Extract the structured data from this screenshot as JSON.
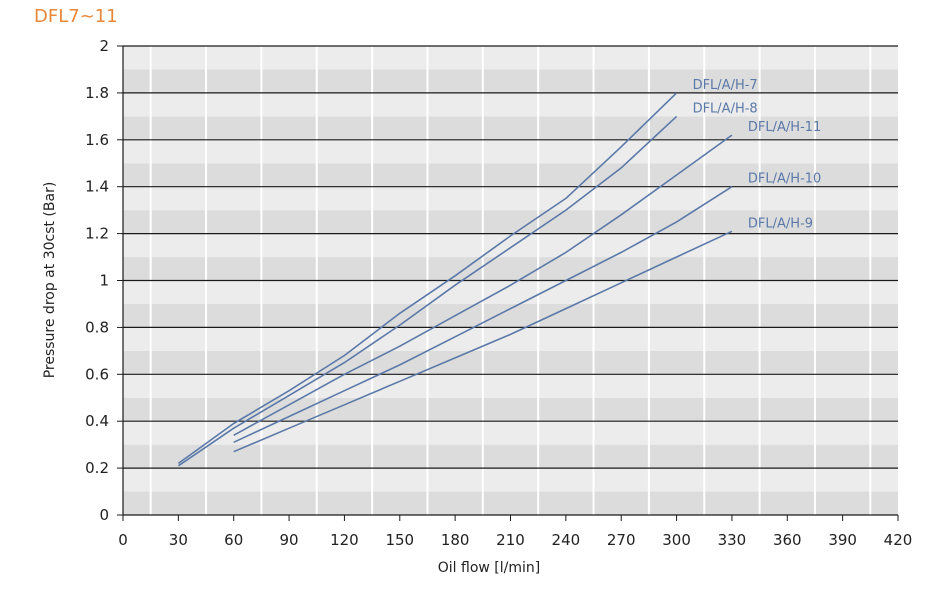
{
  "chart_data": {
    "type": "line",
    "title": "DFL7~11",
    "xlabel": "Oil flow [l/min]",
    "ylabel": "Pressure drop at 30cst (Bar)",
    "xlim": [
      0,
      420
    ],
    "ylim": [
      0,
      2
    ],
    "x_ticks": [
      "0",
      "30",
      "60",
      "90",
      "120",
      "150",
      "180",
      "210",
      "240",
      "270",
      "300",
      "330",
      "360",
      "390",
      "420"
    ],
    "y_ticks": [
      "0",
      "0.2",
      "0.4",
      "0.6",
      "0.8",
      "1",
      "1.2",
      "1.4",
      "1.6",
      "1.8",
      "2"
    ],
    "grid": true,
    "series": [
      {
        "name": "DFL/A/H-7",
        "color": "#5b79a8",
        "points": [
          [
            30,
            0.22
          ],
          [
            60,
            0.39
          ],
          [
            90,
            0.53
          ],
          [
            120,
            0.68
          ],
          [
            150,
            0.86
          ],
          [
            180,
            1.02
          ],
          [
            210,
            1.19
          ],
          [
            240,
            1.35
          ],
          [
            270,
            1.57
          ],
          [
            300,
            1.8
          ]
        ]
      },
      {
        "name": "DFL/A/H-8",
        "color": "#5b79a8",
        "points": [
          [
            30,
            0.21
          ],
          [
            60,
            0.37
          ],
          [
            90,
            0.51
          ],
          [
            120,
            0.65
          ],
          [
            150,
            0.81
          ],
          [
            180,
            0.98
          ],
          [
            210,
            1.14
          ],
          [
            240,
            1.3
          ],
          [
            270,
            1.48
          ],
          [
            300,
            1.7
          ]
        ]
      },
      {
        "name": "DFL/A/H-11",
        "color": "#5b79a8",
        "points": [
          [
            60,
            0.34
          ],
          [
            90,
            0.47
          ],
          [
            120,
            0.6
          ],
          [
            150,
            0.72
          ],
          [
            180,
            0.85
          ],
          [
            210,
            0.98
          ],
          [
            240,
            1.12
          ],
          [
            270,
            1.28
          ],
          [
            300,
            1.45
          ],
          [
            330,
            1.62
          ]
        ]
      },
      {
        "name": "DFL/A/H-10",
        "color": "#5b79a8",
        "points": [
          [
            60,
            0.31
          ],
          [
            90,
            0.42
          ],
          [
            120,
            0.53
          ],
          [
            150,
            0.64
          ],
          [
            180,
            0.76
          ],
          [
            210,
            0.88
          ],
          [
            240,
            1.0
          ],
          [
            270,
            1.12
          ],
          [
            300,
            1.25
          ],
          [
            330,
            1.4
          ]
        ]
      },
      {
        "name": "DFL/A/H-9",
        "color": "#5b79a8",
        "points": [
          [
            60,
            0.27
          ],
          [
            90,
            0.37
          ],
          [
            120,
            0.47
          ],
          [
            150,
            0.57
          ],
          [
            180,
            0.67
          ],
          [
            210,
            0.77
          ],
          [
            240,
            0.88
          ],
          [
            270,
            0.99
          ],
          [
            300,
            1.1
          ],
          [
            330,
            1.21
          ]
        ]
      }
    ]
  },
  "colors": {
    "title": "#e8883a",
    "band_light": "#ececec",
    "band_dark": "#dcdcdc",
    "gridline": "#1a1a1a",
    "series": "#5b79a8"
  }
}
